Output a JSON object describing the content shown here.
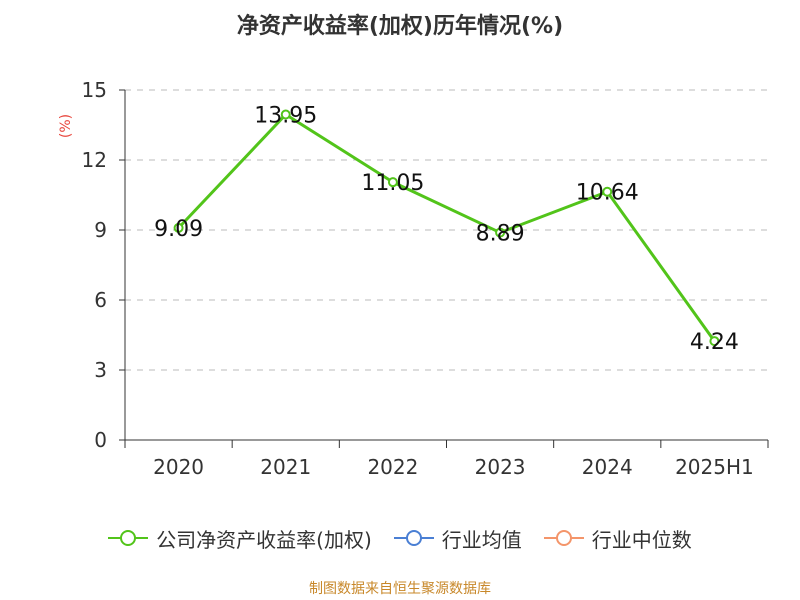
{
  "title": "净资产收益率(加权)历年情况(%)",
  "source": "制图数据来自恒生聚源数据库",
  "colors": {
    "line": "#52c41a",
    "industry_avg": "#4a7fd4",
    "industry_median": "#f4956a",
    "unit_label": "#e8473e",
    "source": "#c8882a",
    "grid": "#bbbbbb",
    "axis": "#333333"
  },
  "legend": [
    {
      "label": "公司净资产收益率(加权)",
      "color": "#52c41a",
      "icon": "line-circle-icon"
    },
    {
      "label": "行业均值",
      "color": "#4a7fd4",
      "icon": "line-circle-icon"
    },
    {
      "label": "行业中位数",
      "color": "#f4956a",
      "icon": "line-circle-icon"
    }
  ],
  "chart_data": {
    "type": "line",
    "title": "净资产收益率(加权)历年情况(%)",
    "xlabel": "",
    "ylabel": "(%)",
    "categories": [
      "2020",
      "2021",
      "2022",
      "2023",
      "2024",
      "2025H1"
    ],
    "ylim": [
      0,
      15
    ],
    "yticks": [
      0,
      3,
      6,
      9,
      12,
      15
    ],
    "grid": true,
    "legend_position": "bottom",
    "series": [
      {
        "name": "公司净资产收益率(加权)",
        "values": [
          9.09,
          13.95,
          11.05,
          8.89,
          10.64,
          4.24
        ],
        "labels": [
          "9.09",
          "13.95",
          "11.05",
          "8.89",
          "10.64",
          "4.24"
        ],
        "color": "#52c41a"
      }
    ]
  }
}
